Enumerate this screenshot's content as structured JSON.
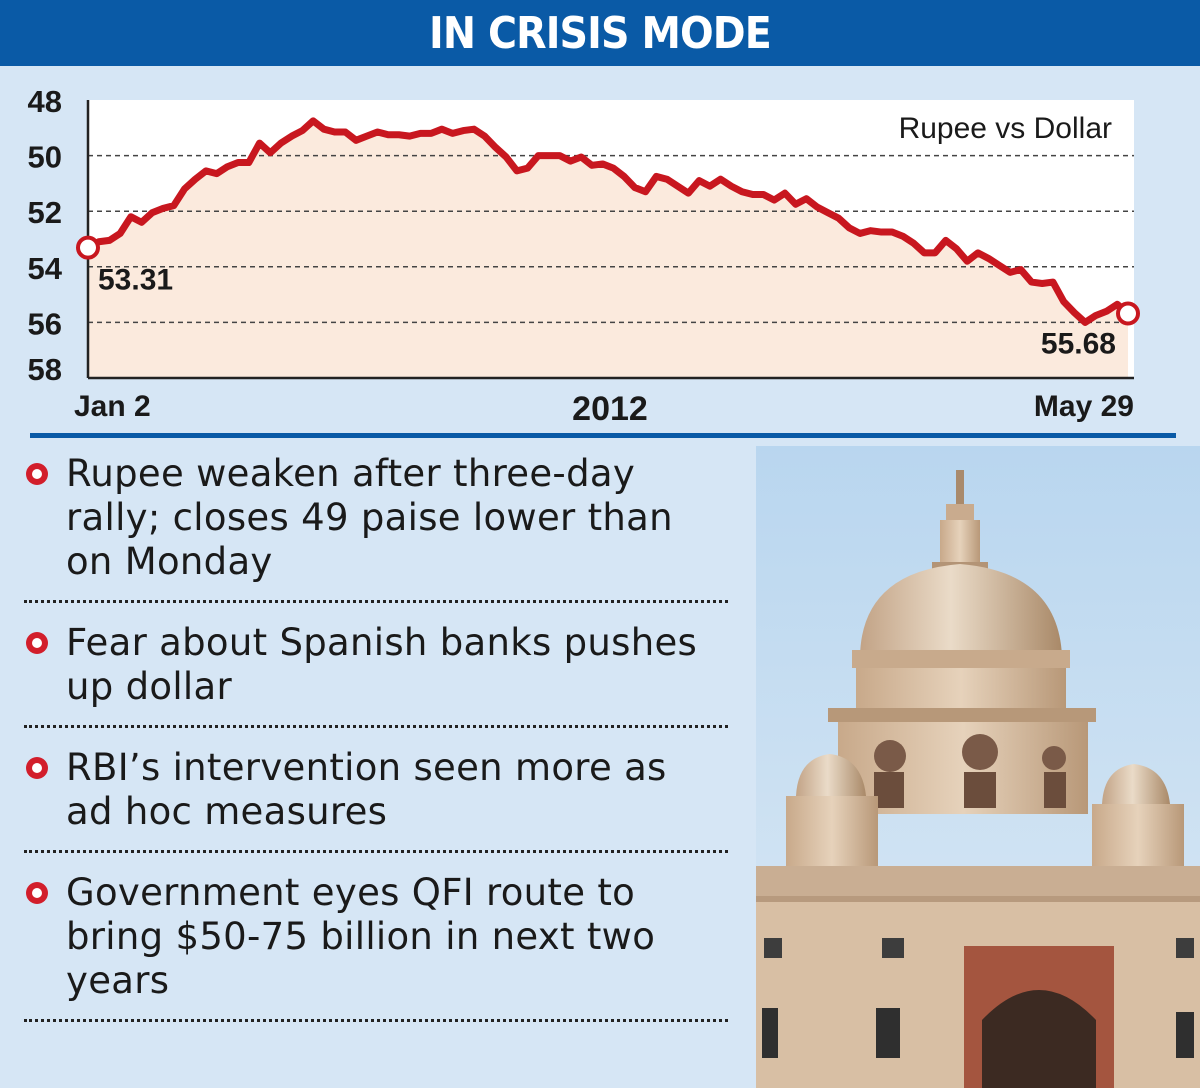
{
  "header": {
    "title": "IN CRISIS MODE"
  },
  "chart_data": {
    "type": "line",
    "title": "Rupee vs Dollar",
    "xlabel": "2012",
    "ylabel": "",
    "x_tick_labels": [
      "Jan 2",
      "May 29"
    ],
    "y_ticks": [
      48,
      50,
      52,
      54,
      56,
      58
    ],
    "ylim": [
      48,
      58
    ],
    "y_inverted": true,
    "grid": "horizontal dashed",
    "annotations": [
      {
        "label": "53.31",
        "value": 53.31
      },
      {
        "label": "55.68",
        "value": 55.68
      }
    ],
    "series": [
      {
        "values": [
          53.31,
          53.1,
          53.05,
          52.8,
          52.2,
          52.4,
          52.05,
          51.9,
          51.8,
          51.2,
          50.85,
          50.55,
          50.65,
          50.4,
          50.25,
          50.25,
          49.55,
          49.9,
          49.55,
          49.3,
          49.1,
          48.75,
          49.05,
          49.15,
          49.15,
          49.45,
          49.3,
          49.15,
          49.25,
          49.25,
          49.3,
          49.2,
          49.2,
          49.05,
          49.2,
          49.1,
          49.05,
          49.3,
          49.7,
          50.05,
          50.55,
          50.45,
          50.0,
          50.0,
          50.0,
          50.2,
          50.05,
          50.35,
          50.3,
          50.45,
          50.75,
          51.15,
          51.3,
          50.75,
          50.85,
          51.1,
          51.35,
          50.9,
          51.1,
          50.85,
          51.1,
          51.3,
          51.4,
          51.4,
          51.6,
          51.35,
          51.75,
          51.55,
          51.85,
          52.05,
          52.25,
          52.6,
          52.8,
          52.7,
          52.75,
          52.75,
          52.9,
          53.15,
          53.5,
          53.5,
          53.05,
          53.35,
          53.8,
          53.5,
          53.7,
          53.95,
          54.2,
          54.1,
          54.55,
          54.6,
          54.55,
          55.25,
          55.65,
          56.0,
          55.75,
          55.6,
          55.35,
          55.68
        ]
      }
    ]
  },
  "bullets": [
    "Rupee weaken after three-day rally; closes 49 paise lower than on Monday",
    "Fear about Spanish banks pushes up dollar",
    "RBI’s intervention seen more as ad hoc measures",
    "Government eyes QFI route to bring $50-75 billion in next two years"
  ],
  "colors": {
    "header_bg": "#0a5aa6",
    "page_bg": "#d6e6f5",
    "line": "#c8171f",
    "area_fill": "#fbeadd",
    "bullet_marker": "#d21e2b"
  }
}
